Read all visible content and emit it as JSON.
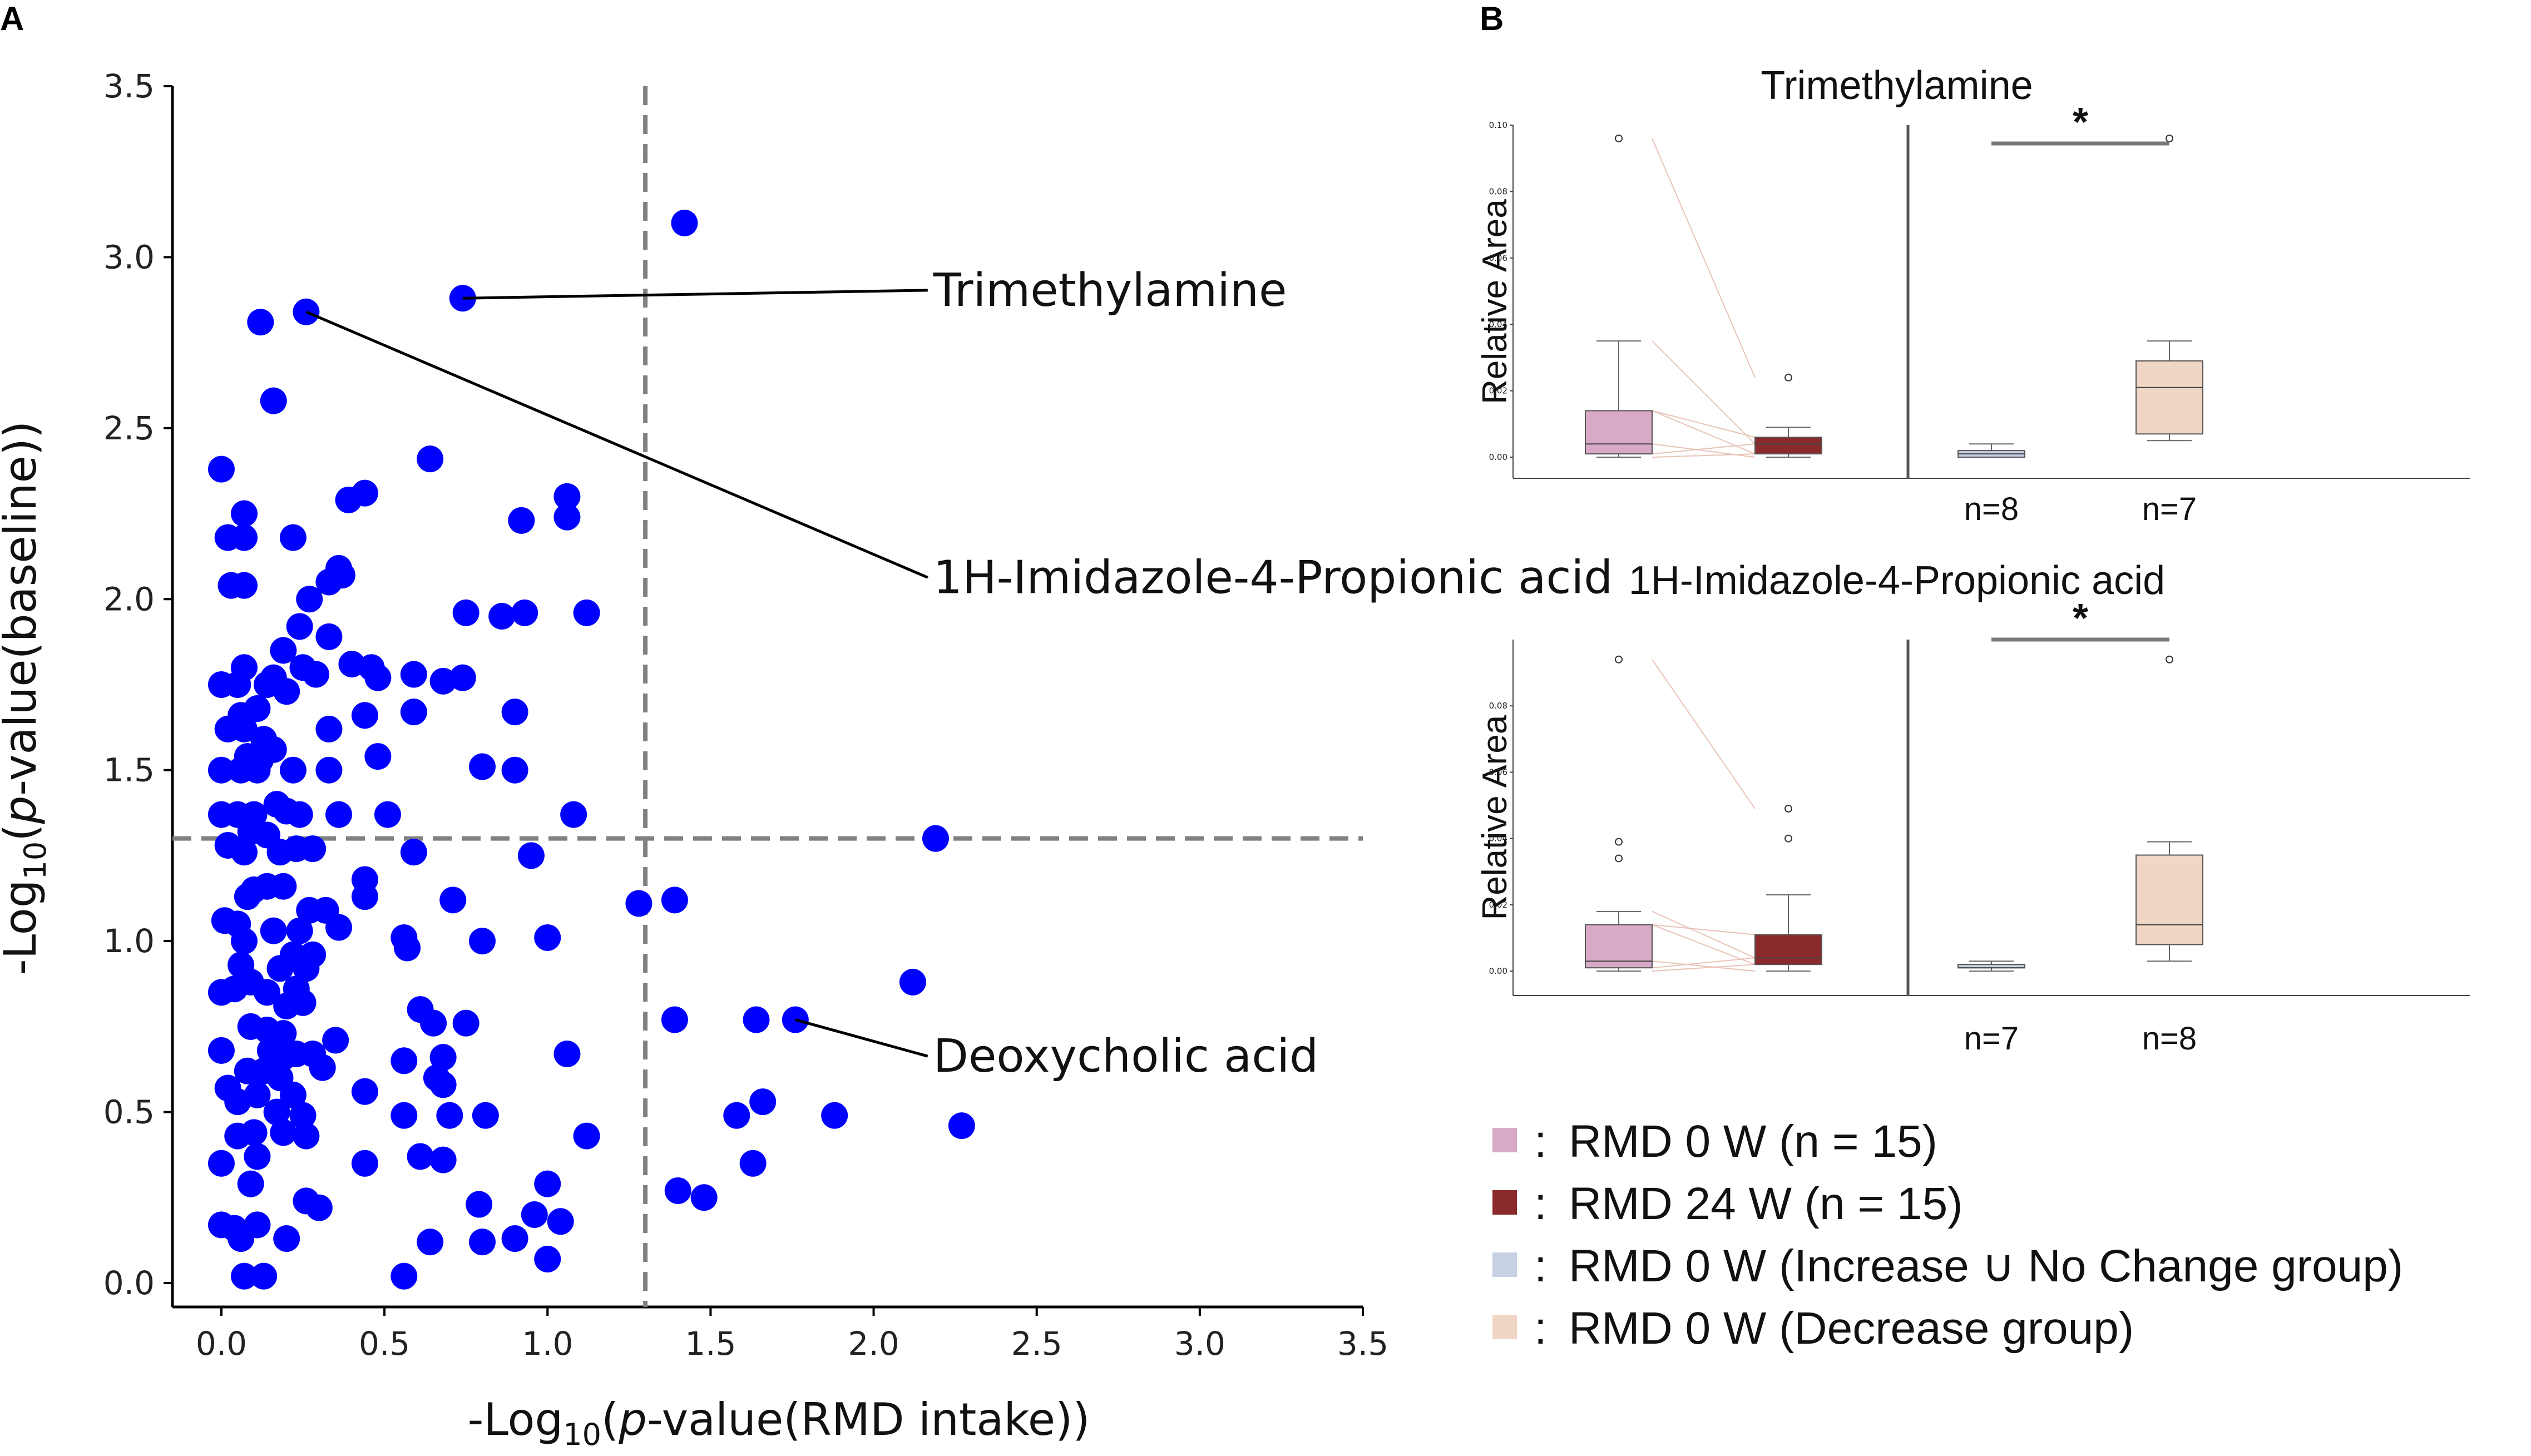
{
  "colors": {
    "point": "#0000ff",
    "ref_line": "#808080",
    "rmd0": "#d9a9c8",
    "rmd24": "#8b2a2c",
    "increase_group": "#c8d0e6",
    "decrease_group": "#f0d6c4"
  },
  "panel_a": {
    "label": "A",
    "xlabel_parts": [
      "-Log",
      "10",
      "(",
      "p",
      "-value(RMD intake))"
    ],
    "ylabel_parts": [
      "-Log",
      "10",
      "(",
      "p",
      "-value(baseline))"
    ],
    "xticks": [
      "0.0",
      "0.5",
      "1.0",
      "1.5",
      "2.0",
      "2.5",
      "3.0",
      "3.5"
    ],
    "yticks": [
      "0.0",
      "0.5",
      "1.0",
      "1.5",
      "2.0",
      "2.5",
      "3.0",
      "3.5"
    ],
    "annotations": [
      {
        "label": "Trimethylamine",
        "point": [
          0.74,
          2.88
        ],
        "text_at": [
          2.2,
          2.9
        ]
      },
      {
        "label": "1H-Imidazole-4-Propionic acid",
        "point": [
          0.26,
          2.84
        ],
        "text_at": [
          2.2,
          2.06
        ]
      },
      {
        "label": "Deoxycholic acid",
        "point": [
          1.76,
          0.77
        ],
        "text_at": [
          2.2,
          0.66
        ]
      }
    ]
  },
  "chart_data": [
    {
      "type": "scatter",
      "title": "",
      "xlabel": "-Log10(p-value(RMD intake))",
      "ylabel": "-Log10(p-value(baseline))",
      "xlim": [
        -0.15,
        3.5
      ],
      "ylim": [
        -0.07,
        3.5
      ],
      "reference_lines": {
        "x": 1.3,
        "y": 1.3,
        "style": "dashed"
      },
      "points": [
        [
          1.42,
          3.1
        ],
        [
          0.74,
          2.88
        ],
        [
          0.12,
          2.81
        ],
        [
          0.26,
          2.84
        ],
        [
          0.16,
          2.58
        ],
        [
          0.64,
          2.41
        ],
        [
          0.0,
          2.38
        ],
        [
          0.39,
          2.29
        ],
        [
          0.44,
          2.31
        ],
        [
          0.07,
          2.25
        ],
        [
          1.06,
          2.3
        ],
        [
          0.92,
          2.23
        ],
        [
          1.06,
          2.24
        ],
        [
          0.02,
          2.18
        ],
        [
          0.07,
          2.18
        ],
        [
          0.22,
          2.18
        ],
        [
          0.37,
          2.07
        ],
        [
          0.33,
          2.05
        ],
        [
          0.36,
          2.09
        ],
        [
          0.03,
          2.04
        ],
        [
          0.07,
          2.04
        ],
        [
          0.27,
          2.0
        ],
        [
          0.75,
          1.96
        ],
        [
          0.86,
          1.95
        ],
        [
          0.93,
          1.96
        ],
        [
          1.12,
          1.96
        ],
        [
          0.24,
          1.92
        ],
        [
          0.33,
          1.89
        ],
        [
          0.19,
          1.85
        ],
        [
          0.4,
          1.81
        ],
        [
          0.07,
          1.8
        ],
        [
          0.16,
          1.77
        ],
        [
          0.25,
          1.8
        ],
        [
          0.29,
          1.78
        ],
        [
          0.46,
          1.8
        ],
        [
          0.48,
          1.77
        ],
        [
          0.59,
          1.78
        ],
        [
          0.68,
          1.76
        ],
        [
          0.74,
          1.77
        ],
        [
          0.0,
          1.75
        ],
        [
          0.05,
          1.75
        ],
        [
          0.14,
          1.75
        ],
        [
          0.2,
          1.73
        ],
        [
          0.11,
          1.68
        ],
        [
          0.06,
          1.66
        ],
        [
          0.33,
          1.62
        ],
        [
          0.44,
          1.66
        ],
        [
          0.59,
          1.67
        ],
        [
          0.9,
          1.67
        ],
        [
          0.02,
          1.62
        ],
        [
          0.07,
          1.62
        ],
        [
          0.13,
          1.59
        ],
        [
          0.16,
          1.56
        ],
        [
          0.08,
          1.54
        ],
        [
          0.12,
          1.53
        ],
        [
          0.48,
          1.54
        ],
        [
          0.0,
          1.5
        ],
        [
          0.06,
          1.5
        ],
        [
          0.11,
          1.5
        ],
        [
          0.22,
          1.5
        ],
        [
          0.33,
          1.5
        ],
        [
          0.8,
          1.51
        ],
        [
          0.9,
          1.5
        ],
        [
          0.17,
          1.4
        ],
        [
          0.0,
          1.37
        ],
        [
          0.05,
          1.37
        ],
        [
          0.1,
          1.37
        ],
        [
          0.2,
          1.38
        ],
        [
          0.24,
          1.37
        ],
        [
          0.36,
          1.37
        ],
        [
          0.51,
          1.37
        ],
        [
          1.08,
          1.37
        ],
        [
          0.09,
          1.32
        ],
        [
          0.14,
          1.31
        ],
        [
          0.02,
          1.28
        ],
        [
          0.07,
          1.26
        ],
        [
          0.18,
          1.26
        ],
        [
          0.23,
          1.27
        ],
        [
          0.28,
          1.27
        ],
        [
          0.59,
          1.26
        ],
        [
          0.95,
          1.25
        ],
        [
          2.19,
          1.3
        ],
        [
          0.44,
          1.18
        ],
        [
          0.1,
          1.15
        ],
        [
          0.14,
          1.16
        ],
        [
          0.19,
          1.16
        ],
        [
          0.08,
          1.13
        ],
        [
          0.44,
          1.13
        ],
        [
          0.71,
          1.12
        ],
        [
          1.28,
          1.11
        ],
        [
          1.39,
          1.12
        ],
        [
          0.27,
          1.09
        ],
        [
          0.32,
          1.09
        ],
        [
          0.01,
          1.06
        ],
        [
          0.05,
          1.05
        ],
        [
          0.16,
          1.03
        ],
        [
          0.07,
          1.0
        ],
        [
          0.24,
          1.03
        ],
        [
          0.36,
          1.04
        ],
        [
          0.56,
          1.01
        ],
        [
          0.57,
          0.98
        ],
        [
          0.22,
          0.96
        ],
        [
          0.28,
          0.96
        ],
        [
          0.8,
          1.0
        ],
        [
          1.0,
          1.01
        ],
        [
          0.06,
          0.93
        ],
        [
          0.18,
          0.92
        ],
        [
          0.26,
          0.92
        ],
        [
          0.0,
          0.85
        ],
        [
          0.04,
          0.86
        ],
        [
          0.09,
          0.88
        ],
        [
          0.14,
          0.85
        ],
        [
          0.23,
          0.86
        ],
        [
          2.12,
          0.88
        ],
        [
          0.2,
          0.81
        ],
        [
          0.25,
          0.82
        ],
        [
          0.61,
          0.8
        ],
        [
          0.65,
          0.76
        ],
        [
          0.75,
          0.76
        ],
        [
          1.39,
          0.77
        ],
        [
          1.64,
          0.77
        ],
        [
          1.76,
          0.77
        ],
        [
          0.09,
          0.75
        ],
        [
          0.14,
          0.74
        ],
        [
          0.19,
          0.73
        ],
        [
          0.35,
          0.71
        ],
        [
          0.0,
          0.68
        ],
        [
          0.15,
          0.68
        ],
        [
          0.19,
          0.66
        ],
        [
          0.23,
          0.67
        ],
        [
          0.28,
          0.67
        ],
        [
          0.68,
          0.66
        ],
        [
          0.56,
          0.65
        ],
        [
          1.06,
          0.67
        ],
        [
          0.08,
          0.62
        ],
        [
          0.13,
          0.62
        ],
        [
          0.18,
          0.6
        ],
        [
          0.31,
          0.63
        ],
        [
          0.66,
          0.6
        ],
        [
          0.68,
          0.58
        ],
        [
          0.02,
          0.57
        ],
        [
          0.11,
          0.55
        ],
        [
          0.22,
          0.55
        ],
        [
          0.44,
          0.56
        ],
        [
          0.05,
          0.53
        ],
        [
          0.17,
          0.5
        ],
        [
          0.25,
          0.49
        ],
        [
          0.56,
          0.49
        ],
        [
          0.7,
          0.49
        ],
        [
          0.81,
          0.49
        ],
        [
          1.66,
          0.53
        ],
        [
          1.58,
          0.49
        ],
        [
          1.88,
          0.49
        ],
        [
          2.27,
          0.46
        ],
        [
          0.05,
          0.43
        ],
        [
          0.1,
          0.44
        ],
        [
          0.19,
          0.44
        ],
        [
          0.26,
          0.43
        ],
        [
          1.12,
          0.43
        ],
        [
          0.0,
          0.35
        ],
        [
          0.11,
          0.37
        ],
        [
          0.44,
          0.35
        ],
        [
          0.61,
          0.37
        ],
        [
          0.68,
          0.36
        ],
        [
          1.63,
          0.35
        ],
        [
          0.09,
          0.29
        ],
        [
          1.0,
          0.29
        ],
        [
          0.26,
          0.24
        ],
        [
          0.3,
          0.22
        ],
        [
          0.79,
          0.23
        ],
        [
          1.4,
          0.27
        ],
        [
          1.48,
          0.25
        ],
        [
          0.0,
          0.17
        ],
        [
          0.04,
          0.16
        ],
        [
          0.11,
          0.17
        ],
        [
          0.06,
          0.13
        ],
        [
          0.2,
          0.13
        ],
        [
          0.64,
          0.12
        ],
        [
          0.8,
          0.12
        ],
        [
          0.9,
          0.13
        ],
        [
          0.96,
          0.2
        ],
        [
          1.04,
          0.18
        ],
        [
          1.0,
          0.07
        ],
        [
          0.07,
          0.02
        ],
        [
          0.13,
          0.02
        ],
        [
          0.56,
          0.02
        ]
      ]
    },
    {
      "type": "box",
      "title": "Trimethylamine",
      "ylabel": "Relative Area",
      "ylim": [
        -0.003,
        0.1
      ],
      "yticks": [
        "0.00",
        "0.02",
        "0.04",
        "0.06",
        "0.08",
        "0.10"
      ],
      "boxes": [
        {
          "group": "RMD 0 W",
          "whisker_low": 0.0,
          "q1": 0.001,
          "median": 0.004,
          "q3": 0.014,
          "whisker_high": 0.035,
          "outliers": [
            0.096
          ]
        },
        {
          "group": "RMD 24 W",
          "whisker_low": 0.0,
          "q1": 0.001,
          "median": 0.004,
          "q3": 0.006,
          "whisker_high": 0.009,
          "outliers": [
            0.024
          ]
        },
        {
          "group": "RMD 0 W (Increase ∪ No Change group)",
          "n_label": "n=8",
          "whisker_low": 0.0,
          "q1": 0.0,
          "median": 0.001,
          "q3": 0.002,
          "whisker_high": 0.004,
          "outliers": []
        },
        {
          "group": "RMD 0 W (Decrease group)",
          "n_label": "n=7",
          "whisker_low": 0.005,
          "q1": 0.007,
          "median": 0.021,
          "q3": 0.029,
          "whisker_high": 0.035,
          "outliers": [
            0.096
          ]
        }
      ],
      "significance": "*"
    },
    {
      "type": "box",
      "title": "1H-Imidazole-4-Propionic acid",
      "ylabel": "Relative Area",
      "ylim": [
        -0.004,
        0.1
      ],
      "yticks": [
        "0.00",
        "0.02",
        "0.04",
        "0.06",
        "0.08"
      ],
      "boxes": [
        {
          "group": "RMD 0 W",
          "whisker_low": 0.0,
          "q1": 0.001,
          "median": 0.003,
          "q3": 0.014,
          "whisker_high": 0.018,
          "outliers": [
            0.034,
            0.039,
            0.094
          ]
        },
        {
          "group": "RMD 24 W",
          "whisker_low": 0.0,
          "q1": 0.002,
          "median": 0.004,
          "q3": 0.011,
          "whisker_high": 0.023,
          "outliers": [
            0.04,
            0.049
          ]
        },
        {
          "group": "RMD 0 W (Increase ∪ No Change group)",
          "n_label": "n=7",
          "whisker_low": 0.0,
          "q1": 0.001,
          "median": 0.001,
          "q3": 0.002,
          "whisker_high": 0.003,
          "outliers": []
        },
        {
          "group": "RMD 0 W (Decrease group)",
          "n_label": "n=8",
          "whisker_low": 0.003,
          "q1": 0.008,
          "median": 0.014,
          "q3": 0.035,
          "whisker_high": 0.039,
          "outliers": [
            0.094
          ]
        }
      ],
      "significance": "*"
    }
  ],
  "panel_b": {
    "label": "B",
    "legend": [
      {
        "color_key": "rmd0",
        "sep": ":",
        "text": "RMD 0 W    (n = 15)"
      },
      {
        "color_key": "rmd24",
        "sep": ":",
        "text": "RMD 24 W  (n = 15)"
      },
      {
        "color_key": "increase_group",
        "sep": ":",
        "text": "RMD 0 W (Increase ∪ No Change group)"
      },
      {
        "color_key": "decrease_group",
        "sep": ":",
        "text": "RMD 0 W (Decrease group)"
      }
    ]
  }
}
